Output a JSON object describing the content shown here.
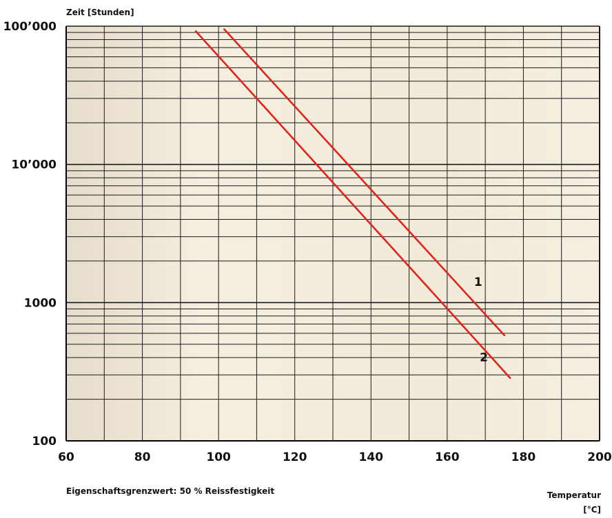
{
  "chart_data": {
    "type": "line",
    "title": "",
    "ylabel": "Zeit [Stunden]",
    "xlabel_line1": "Temperatur",
    "xlabel_line2": "[°C]",
    "footnote": "Eigenschaftsgrenzwert: 50 % Reissfestigkeit",
    "y_scale": "log",
    "xlim": [
      60,
      200
    ],
    "ylim": [
      100,
      100000
    ],
    "grid": true,
    "x_ticks": [
      {
        "value": 60,
        "label": "60"
      },
      {
        "value": 80,
        "label": "80"
      },
      {
        "value": 100,
        "label": "100"
      },
      {
        "value": 120,
        "label": "120"
      },
      {
        "value": 140,
        "label": "140"
      },
      {
        "value": 160,
        "label": "160"
      },
      {
        "value": 180,
        "label": "180"
      },
      {
        "value": 200,
        "label": "200"
      }
    ],
    "y_ticks": [
      {
        "value": 100,
        "label": "100"
      },
      {
        "value": 1000,
        "label": "1000"
      },
      {
        "value": 10000,
        "label": "10’000"
      },
      {
        "value": 100000,
        "label": "100’000"
      }
    ],
    "series": [
      {
        "name": "1",
        "color": "#e0241b",
        "x": [
          101.5,
          175
        ],
        "y": [
          95000,
          580
        ]
      },
      {
        "name": "2",
        "color": "#e0241b",
        "x": [
          94,
          176.5
        ],
        "y": [
          92000,
          285
        ]
      }
    ],
    "grid_color": "#1a1a1a",
    "background_color": "#f3ecdc"
  }
}
